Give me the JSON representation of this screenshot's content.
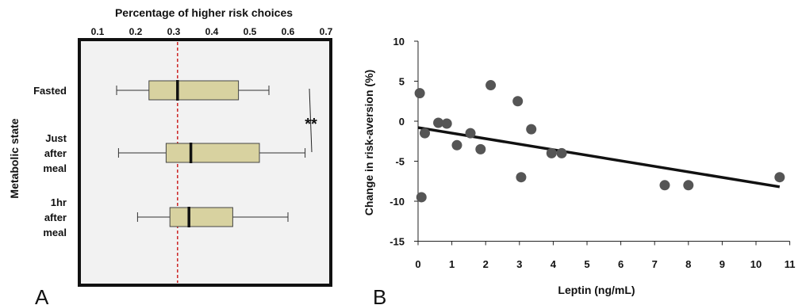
{
  "panels": {
    "left_letter": "A",
    "right_letter": "B"
  },
  "chart_data": [
    {
      "type": "boxplot",
      "orientation": "horizontal",
      "xlabel": "Percentage of higher risk choices",
      "xlim": [
        0.05,
        0.75
      ],
      "xticks": [
        "0.1",
        "0.2",
        "0.3",
        "0.4",
        "0.5",
        "0.6",
        "0.7"
      ],
      "ylabel": "Metabolic state",
      "reference_line": 0.31,
      "reference_color": "#cc2222",
      "box_color": "#d8d2a0",
      "background_color": "#f2f2f2",
      "significance": "**",
      "categories": [
        {
          "lines": [
            "Fasted"
          ],
          "min": 0.15,
          "q1": 0.235,
          "median": 0.31,
          "q3": 0.47,
          "max": 0.55
        },
        {
          "lines": [
            "Just",
            "after",
            "meal"
          ],
          "min": 0.155,
          "q1": 0.28,
          "median": 0.345,
          "q3": 0.525,
          "max": 0.645
        },
        {
          "lines": [
            "1hr",
            "after",
            "meal"
          ],
          "min": 0.205,
          "q1": 0.29,
          "median": 0.34,
          "q3": 0.455,
          "max": 0.6
        }
      ]
    },
    {
      "type": "scatter",
      "xlabel": "Leptin (ng/mL)",
      "ylabel": "Change in risk-aversion (%)",
      "xlim": [
        0,
        11
      ],
      "ylim": [
        -15,
        10
      ],
      "xticks": [
        "0",
        "1",
        "2",
        "3",
        "4",
        "5",
        "6",
        "7",
        "8",
        "9",
        "10",
        "11"
      ],
      "yticks": [
        "10",
        "5",
        "0",
        "-5",
        "-10",
        "-15"
      ],
      "point_color": "#555555",
      "points": [
        {
          "x": 0.05,
          "y": 3.5
        },
        {
          "x": 0.2,
          "y": -1.5
        },
        {
          "x": 0.1,
          "y": -9.5
        },
        {
          "x": 0.6,
          "y": -0.2
        },
        {
          "x": 0.85,
          "y": -0.3
        },
        {
          "x": 1.15,
          "y": -3
        },
        {
          "x": 1.55,
          "y": -1.5
        },
        {
          "x": 1.85,
          "y": -3.5
        },
        {
          "x": 2.15,
          "y": 4.5
        },
        {
          "x": 2.95,
          "y": 2.5
        },
        {
          "x": 3.05,
          "y": -7
        },
        {
          "x": 3.35,
          "y": -1
        },
        {
          "x": 3.95,
          "y": -4
        },
        {
          "x": 4.25,
          "y": -4
        },
        {
          "x": 7.3,
          "y": -8
        },
        {
          "x": 8.0,
          "y": -8
        },
        {
          "x": 10.7,
          "y": -7
        }
      ],
      "trendline": {
        "x": [
          0,
          10.7
        ],
        "y": [
          -0.8,
          -8.2
        ]
      }
    }
  ]
}
